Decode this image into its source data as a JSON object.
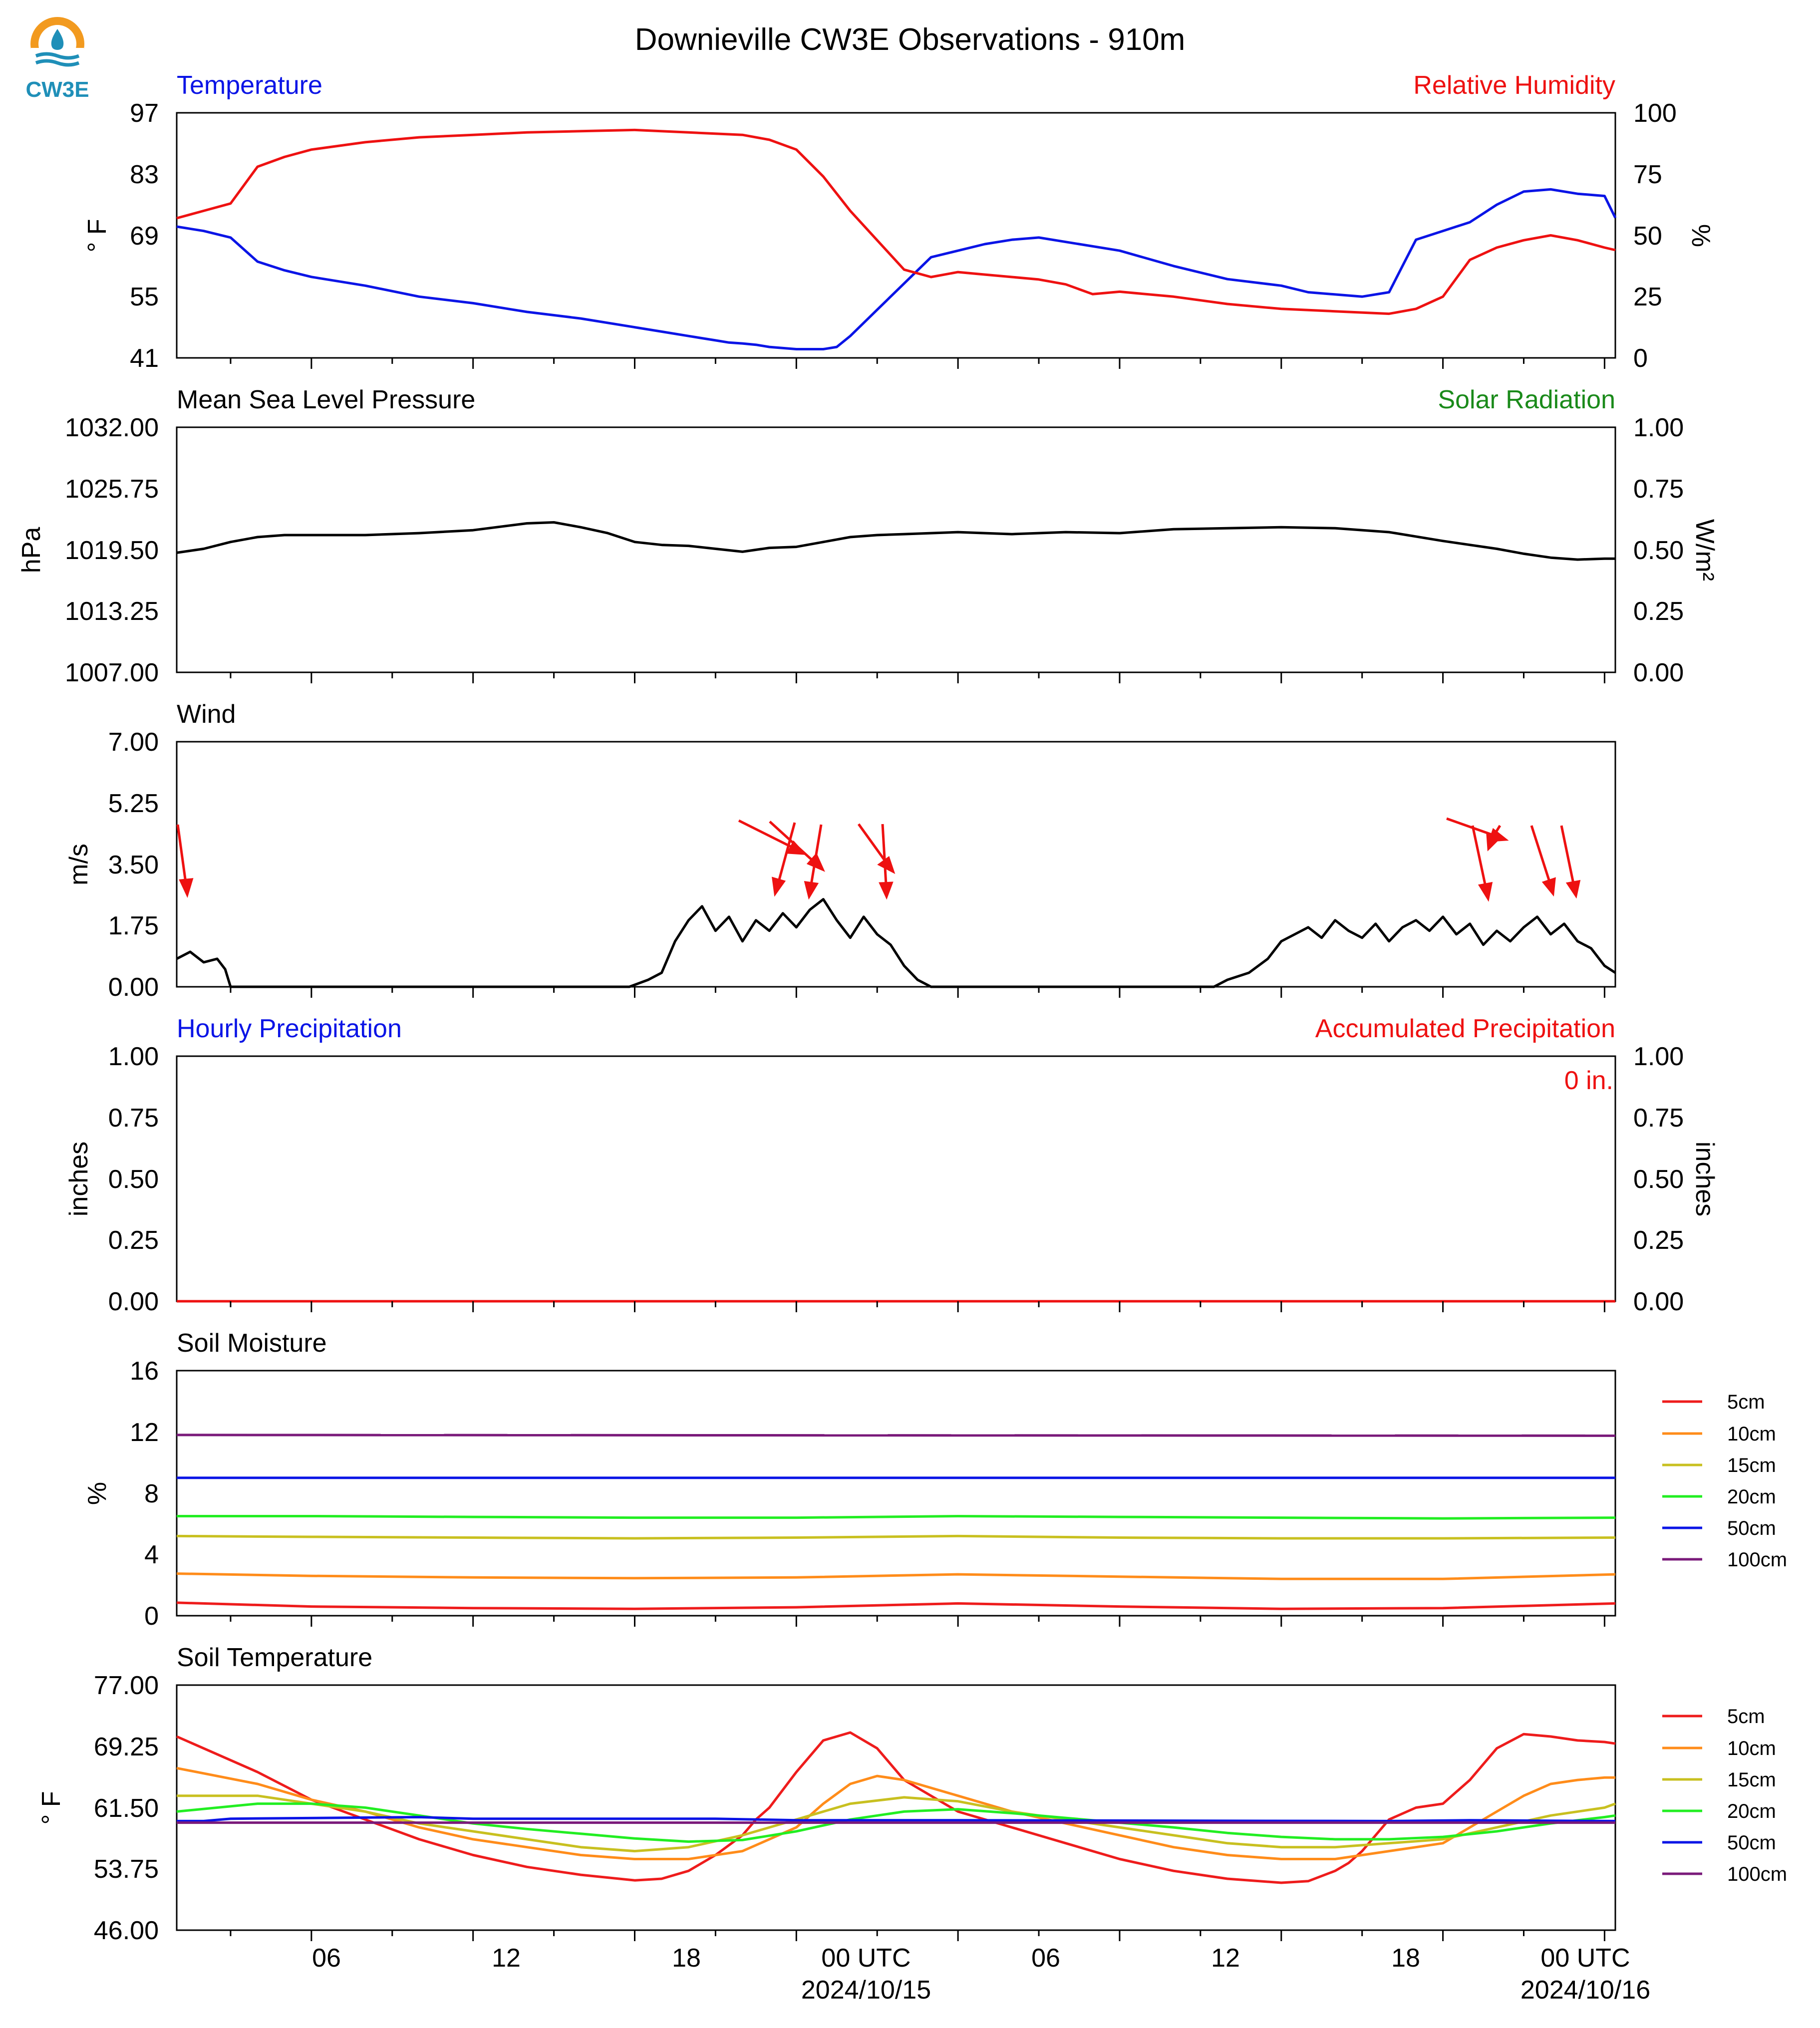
{
  "header": {
    "title": "Downieville CW3E Observations - 910m",
    "logo_text": "CW3E"
  },
  "x_axis": {
    "ticks": [
      "06",
      "12",
      "18",
      "00 UTC",
      "06",
      "12",
      "18",
      "00 UTC"
    ],
    "dates": [
      "2024/10/15",
      "2024/10/16"
    ]
  },
  "colors": {
    "temperature": "#0a14e6",
    "humidity": "#ee1111",
    "solar": "#1a8a1a",
    "black": "#000000",
    "soil_5cm": "#ee1c1c",
    "soil_10cm": "#ff8c1a",
    "soil_15cm": "#c8c020",
    "soil_20cm": "#22ee22",
    "soil_50cm": "#0a14e6",
    "soil_100cm": "#7a1a7a"
  },
  "chart_data": [
    {
      "type": "line",
      "panel": "temperature_humidity",
      "title_left": "Temperature",
      "title_right": "Relative Humidity",
      "ylabel_left": "° F",
      "ylabel_right": "%",
      "yticks_left": [
        "97",
        "83",
        "69",
        "55",
        "41"
      ],
      "yticks_right": [
        "100",
        "75",
        "50",
        "25",
        "0"
      ],
      "ylim_left": [
        41,
        97
      ],
      "ylim_right": [
        0,
        100
      ],
      "series": [
        {
          "name": "Temperature",
          "axis": "left",
          "color_key": "temperature",
          "x": [
            -5,
            -4,
            -3,
            -2,
            -1,
            0,
            2,
            4,
            6,
            8,
            10,
            12,
            13,
            14,
            15,
            15.5,
            16,
            16.5,
            17,
            18,
            19,
            19.5,
            20,
            21,
            22,
            23,
            24,
            25,
            26,
            27,
            28,
            30,
            32,
            34,
            36,
            37,
            38,
            39,
            39.5,
            40,
            40.5,
            41,
            42,
            43,
            44,
            45,
            46,
            47,
            48,
            48.4
          ],
          "values": [
            71,
            70,
            68.5,
            63,
            61,
            59.5,
            57.5,
            55,
            53.5,
            51.5,
            50,
            48,
            47,
            46,
            45,
            44.5,
            44.3,
            44,
            43.5,
            43,
            43,
            43.5,
            46,
            52,
            58,
            64,
            65.5,
            67,
            68,
            68.5,
            67.5,
            65.5,
            62,
            59,
            57.5,
            56,
            55.5,
            55,
            55.5,
            56,
            62,
            68,
            70,
            72,
            76,
            79,
            79.5,
            78.5,
            78,
            73
          ]
        },
        {
          "name": "Relative Humidity",
          "axis": "right",
          "color_key": "humidity",
          "x": [
            -5,
            -4,
            -3,
            -2,
            -1,
            0,
            2,
            4,
            6,
            8,
            10,
            12,
            14,
            16,
            17,
            18,
            19,
            20,
            21,
            22,
            23,
            24,
            25,
            26,
            27,
            28,
            29,
            30,
            32,
            34,
            36,
            38,
            40,
            41,
            42,
            43,
            44,
            45,
            46,
            47,
            48,
            48.4
          ],
          "values": [
            57,
            60,
            63,
            78,
            82,
            85,
            88,
            90,
            91,
            92,
            92.5,
            93,
            92,
            91,
            89,
            85,
            74,
            60,
            48,
            36,
            33,
            35,
            34,
            33,
            32,
            30,
            26,
            27,
            25,
            22,
            20,
            19,
            18,
            20,
            25,
            40,
            45,
            48,
            50,
            48,
            45,
            44
          ]
        }
      ]
    },
    {
      "type": "line",
      "panel": "pressure",
      "title_left": "Mean Sea Level Pressure",
      "title_right": "Solar Radiation",
      "ylabel_left": "hPa",
      "ylabel_right": "W/m²",
      "yticks_left": [
        "1032.00",
        "1025.75",
        "1019.50",
        "1013.25",
        "1007.00"
      ],
      "yticks_right": [
        "1.00",
        "0.75",
        "0.50",
        "0.25",
        "0.00"
      ],
      "ylim_left": [
        1007,
        1032
      ],
      "ylim_right": [
        0,
        1
      ],
      "series": [
        {
          "name": "Mean Sea Level Pressure",
          "axis": "left",
          "color_key": "black",
          "x": [
            -5,
            -4,
            -3,
            -2,
            -1,
            0,
            2,
            4,
            6,
            8,
            9,
            10,
            11,
            12,
            13,
            14,
            15,
            16,
            17,
            18,
            19,
            20,
            21,
            22,
            23,
            24,
            26,
            28,
            30,
            32,
            34,
            36,
            38,
            40,
            42,
            44,
            45,
            46,
            47,
            48,
            48.4
          ],
          "values": [
            1019.2,
            1019.6,
            1020.3,
            1020.8,
            1021,
            1021,
            1021,
            1021.2,
            1021.5,
            1022.2,
            1022.3,
            1021.8,
            1021.2,
            1020.3,
            1020,
            1019.9,
            1019.6,
            1019.3,
            1019.7,
            1019.8,
            1020.3,
            1020.8,
            1021,
            1021.1,
            1021.2,
            1021.3,
            1021.1,
            1021.3,
            1021.2,
            1021.6,
            1021.7,
            1021.8,
            1021.7,
            1021.3,
            1020.4,
            1019.6,
            1019.1,
            1018.7,
            1018.5,
            1018.6,
            1018.6
          ]
        }
      ]
    },
    {
      "type": "line",
      "panel": "wind",
      "title_left": "Wind",
      "ylabel_left": "m/s",
      "yticks_left": [
        "7.00",
        "5.25",
        "3.50",
        "1.75",
        "0.00"
      ],
      "ylim_left": [
        0,
        7
      ],
      "series": [
        {
          "name": "Wind speed",
          "axis": "left",
          "color_key": "black",
          "x": [
            -5,
            -4.5,
            -4,
            -3.5,
            -3.2,
            -3,
            11.8,
            12.5,
            13,
            13.5,
            14,
            14.5,
            15,
            15.5,
            16,
            16.5,
            17,
            17.5,
            18,
            18.5,
            19,
            19.5,
            20,
            20.5,
            21,
            21.5,
            22,
            22.5,
            23,
            33.5,
            34,
            34.8,
            35.5,
            36,
            36.5,
            37,
            37.5,
            38,
            38.5,
            39,
            39.5,
            40,
            40.5,
            41,
            41.5,
            42,
            42.5,
            43,
            43.5,
            44,
            44.5,
            45,
            45.5,
            46,
            46.5,
            47,
            47.5,
            48,
            48.4
          ],
          "values": [
            0.8,
            1.0,
            0.7,
            0.8,
            0.5,
            0,
            0,
            0.2,
            0.4,
            1.3,
            1.9,
            2.3,
            1.6,
            2.0,
            1.3,
            1.9,
            1.6,
            2.1,
            1.7,
            2.2,
            2.5,
            1.9,
            1.4,
            2.0,
            1.5,
            1.2,
            0.6,
            0.2,
            0,
            0,
            0.2,
            0.4,
            0.8,
            1.3,
            1.5,
            1.7,
            1.4,
            1.9,
            1.6,
            1.4,
            1.8,
            1.3,
            1.7,
            1.9,
            1.6,
            2.0,
            1.5,
            1.8,
            1.2,
            1.6,
            1.3,
            1.7,
            2.0,
            1.5,
            1.8,
            1.3,
            1.1,
            0.6,
            0.4
          ]
        }
      ]
    },
    {
      "type": "line",
      "panel": "precipitation",
      "title_left": "Hourly Precipitation",
      "title_right": "Accumulated Precipitation",
      "annotation": "0 in.",
      "ylabel_left": "inches",
      "ylabel_right": "inches",
      "yticks_left": [
        "1.00",
        "0.75",
        "0.50",
        "0.25",
        "0.00"
      ],
      "yticks_right": [
        "1.00",
        "0.75",
        "0.50",
        "0.25",
        "0.00"
      ],
      "ylim_left": [
        0,
        1
      ],
      "series": [
        {
          "name": "Hourly Precipitation",
          "axis": "left",
          "color_key": "temperature",
          "x": [
            -5,
            48.4
          ],
          "values": [
            0,
            0
          ]
        },
        {
          "name": "Accumulated Precipitation",
          "axis": "left",
          "color_key": "humidity",
          "x": [
            -5,
            48.4
          ],
          "values": [
            0,
            0
          ]
        }
      ]
    },
    {
      "type": "line",
      "panel": "soil_moisture",
      "title_left": "Soil Moisture",
      "ylabel_left": "%",
      "yticks_left": [
        "16",
        "12",
        "8",
        "4",
        "0"
      ],
      "ylim_left": [
        0,
        16
      ],
      "legend": [
        "5cm",
        "10cm",
        "15cm",
        "20cm",
        "50cm",
        "100cm"
      ],
      "series": [
        {
          "name": "5cm",
          "color_key": "soil_5cm",
          "x": [
            -5,
            0,
            6,
            12,
            18,
            24,
            30,
            36,
            42,
            48.4
          ],
          "values": [
            0.85,
            0.6,
            0.5,
            0.45,
            0.55,
            0.8,
            0.6,
            0.45,
            0.5,
            0.8
          ]
        },
        {
          "name": "10cm",
          "color_key": "soil_10cm",
          "x": [
            -5,
            0,
            6,
            12,
            18,
            24,
            30,
            36,
            42,
            48.4
          ],
          "values": [
            2.75,
            2.6,
            2.5,
            2.45,
            2.5,
            2.7,
            2.55,
            2.4,
            2.4,
            2.7
          ]
        },
        {
          "name": "15cm",
          "color_key": "soil_15cm",
          "x": [
            -5,
            0,
            6,
            12,
            18,
            24,
            30,
            36,
            42,
            48.4
          ],
          "values": [
            5.2,
            5.15,
            5.1,
            5.05,
            5.1,
            5.2,
            5.1,
            5.05,
            5.05,
            5.1
          ]
        },
        {
          "name": "20cm",
          "color_key": "soil_20cm",
          "x": [
            -5,
            0,
            6,
            12,
            18,
            24,
            30,
            36,
            42,
            48.4
          ],
          "values": [
            6.5,
            6.5,
            6.45,
            6.4,
            6.4,
            6.5,
            6.45,
            6.4,
            6.35,
            6.4
          ]
        },
        {
          "name": "50cm",
          "color_key": "soil_50cm",
          "x": [
            -5,
            48.4
          ],
          "values": [
            9.0,
            9.0
          ]
        },
        {
          "name": "100cm",
          "color_key": "soil_100cm",
          "x": [
            -5,
            48.4
          ],
          "values": [
            11.8,
            11.75
          ]
        }
      ]
    },
    {
      "type": "line",
      "panel": "soil_temperature",
      "title_left": "Soil Temperature",
      "ylabel_left": "° F",
      "yticks_left": [
        "77.00",
        "69.25",
        "61.50",
        "53.75",
        "46.00"
      ],
      "ylim_left": [
        46,
        77
      ],
      "legend": [
        "5cm",
        "10cm",
        "15cm",
        "20cm",
        "50cm",
        "100cm"
      ],
      "series": [
        {
          "name": "5cm",
          "color_key": "soil_5cm",
          "x": [
            -5,
            -2,
            0,
            2,
            4,
            6,
            8,
            10,
            12,
            13,
            14,
            15,
            16,
            16.5,
            17,
            18,
            19,
            20,
            21,
            22,
            24,
            26,
            28,
            30,
            32,
            34,
            36,
            37,
            38,
            38.5,
            39,
            40,
            41,
            42,
            43,
            44,
            45,
            46,
            47,
            48,
            48.4
          ],
          "values": [
            70.5,
            66,
            62.5,
            60,
            57.5,
            55.5,
            54,
            53,
            52.3,
            52.5,
            53.5,
            55.5,
            58,
            60,
            61.5,
            66,
            70,
            71,
            69,
            65,
            61,
            59,
            57,
            55,
            53.5,
            52.5,
            52,
            52.2,
            53.5,
            54.5,
            56,
            60,
            61.5,
            62,
            65,
            69,
            70.8,
            70.5,
            70,
            69.8,
            69.6
          ]
        },
        {
          "name": "10cm",
          "color_key": "soil_10cm",
          "x": [
            -5,
            -2,
            0,
            2,
            4,
            6,
            8,
            10,
            12,
            14,
            16,
            18,
            19,
            20,
            21,
            22,
            24,
            26,
            28,
            30,
            32,
            34,
            36,
            38,
            40,
            42,
            43,
            44,
            45,
            46,
            47,
            48,
            48.4
          ],
          "values": [
            66.5,
            64.5,
            62.5,
            61,
            59,
            57.5,
            56.5,
            55.5,
            55,
            55,
            56,
            59,
            62,
            64.5,
            65.5,
            65,
            63,
            61,
            59.5,
            58,
            56.5,
            55.5,
            55,
            55,
            56,
            57,
            59,
            61,
            63,
            64.5,
            65,
            65.3,
            65.3
          ]
        },
        {
          "name": "15cm",
          "color_key": "soil_15cm",
          "x": [
            -5,
            -2,
            0,
            2,
            4,
            6,
            8,
            10,
            12,
            14,
            16,
            18,
            20,
            22,
            24,
            26,
            28,
            30,
            32,
            34,
            36,
            38,
            40,
            42,
            44,
            46,
            48,
            48.4
          ],
          "values": [
            63,
            63,
            62,
            61,
            59.5,
            58.5,
            57.5,
            56.5,
            56,
            56.5,
            58,
            60,
            62,
            62.8,
            62.3,
            61,
            60,
            59,
            58,
            57,
            56.5,
            56.5,
            57,
            57.5,
            59,
            60.5,
            61.5,
            62
          ]
        },
        {
          "name": "20cm",
          "color_key": "soil_20cm",
          "x": [
            -5,
            -2,
            0,
            2,
            4,
            6,
            8,
            10,
            12,
            14,
            16,
            18,
            20,
            22,
            24,
            26,
            28,
            30,
            32,
            34,
            36,
            38,
            40,
            42,
            44,
            46,
            48,
            48.4
          ],
          "values": [
            61,
            62,
            62,
            61.5,
            60.5,
            59.5,
            58.8,
            58.2,
            57.6,
            57.2,
            57.4,
            58.5,
            60,
            61,
            61.3,
            60.8,
            60.2,
            59.6,
            59,
            58.3,
            57.8,
            57.5,
            57.5,
            57.8,
            58.5,
            59.5,
            60.3,
            60.5
          ]
        },
        {
          "name": "50cm",
          "color_key": "soil_50cm",
          "x": [
            -5,
            -4,
            -3,
            4,
            6,
            15,
            18,
            24,
            40,
            43,
            48.4
          ],
          "values": [
            59.8,
            59.8,
            60.1,
            60.3,
            60.1,
            60.1,
            59.9,
            59.9,
            59.8,
            59.9,
            59.8
          ]
        },
        {
          "name": "100cm",
          "color_key": "soil_100cm",
          "x": [
            -5,
            48.4
          ],
          "values": [
            59.6,
            59.6
          ]
        }
      ]
    }
  ]
}
